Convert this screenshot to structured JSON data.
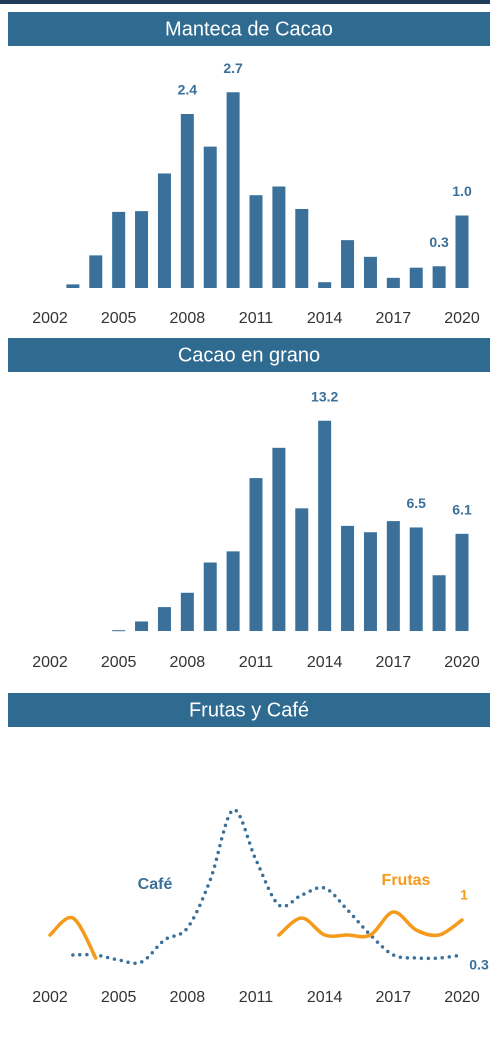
{
  "chart_data": [
    {
      "type": "bar",
      "title": "Manteca de Cacao",
      "color": "#3a7099",
      "x": [
        2003,
        2004,
        2005,
        2006,
        2007,
        2008,
        2009,
        2010,
        2011,
        2012,
        2013,
        2014,
        2015,
        2016,
        2017,
        2018,
        2019,
        2020
      ],
      "values": [
        0.05,
        0.45,
        1.05,
        1.06,
        1.58,
        2.4,
        1.95,
        2.7,
        1.28,
        1.4,
        1.09,
        0.08,
        0.66,
        0.43,
        0.14,
        0.28,
        0.3,
        1.0
      ],
      "value_labels": [
        null,
        null,
        null,
        null,
        null,
        "2.4",
        null,
        "2.7",
        null,
        null,
        null,
        null,
        null,
        null,
        null,
        null,
        "0.3",
        "1.0"
      ],
      "xlim": [
        2002,
        2020
      ],
      "xticks": [
        2002,
        2005,
        2008,
        2011,
        2014,
        2017,
        2020
      ],
      "ylim": [
        0,
        2.8
      ]
    },
    {
      "type": "bar",
      "title": "Cacao en grano",
      "color": "#3a7099",
      "x": [
        2005,
        2006,
        2007,
        2008,
        2009,
        2010,
        2011,
        2012,
        2013,
        2014,
        2015,
        2016,
        2017,
        2018,
        2019,
        2020
      ],
      "values": [
        0.05,
        0.6,
        1.5,
        2.4,
        4.3,
        5.0,
        9.6,
        11.5,
        7.7,
        13.2,
        6.6,
        6.2,
        6.9,
        6.5,
        3.5,
        6.1
      ],
      "value_labels": [
        null,
        null,
        null,
        null,
        null,
        null,
        null,
        null,
        null,
        "13.2",
        null,
        null,
        null,
        "6.5",
        null,
        "6.1"
      ],
      "xlim": [
        2002,
        2020
      ],
      "xticks": [
        2002,
        2005,
        2008,
        2011,
        2014,
        2017,
        2020
      ],
      "ylim": [
        0,
        14
      ]
    },
    {
      "type": "line",
      "title": "Frutas y Café",
      "x": [
        2002,
        2003,
        2004,
        2005,
        2006,
        2007,
        2008,
        2009,
        2010,
        2011,
        2012,
        2013,
        2014,
        2015,
        2016,
        2017,
        2018,
        2019,
        2020
      ],
      "series": [
        {
          "name": "Café",
          "color": "#3a7099",
          "dash": "dotted",
          "values": [
            null,
            0.3,
            0.3,
            0.2,
            0.16,
            0.6,
            0.84,
            1.8,
            3.2,
            2.2,
            1.3,
            1.5,
            1.64,
            1.2,
            0.7,
            0.3,
            0.24,
            0.24,
            0.3
          ],
          "end_label": "0.3"
        },
        {
          "name": "Frutas",
          "color": "#f59a1b",
          "dash": "solid",
          "values": [
            0.7,
            1.04,
            0.24,
            null,
            null,
            null,
            null,
            null,
            null,
            null,
            0.7,
            1.04,
            0.7,
            0.7,
            0.7,
            1.16,
            0.8,
            0.7,
            1
          ],
          "end_label": "1"
        }
      ],
      "xlim": [
        2002,
        2020
      ],
      "xticks": [
        2002,
        2005,
        2008,
        2011,
        2014,
        2017,
        2020
      ],
      "ylim": [
        0,
        3.4
      ]
    }
  ]
}
